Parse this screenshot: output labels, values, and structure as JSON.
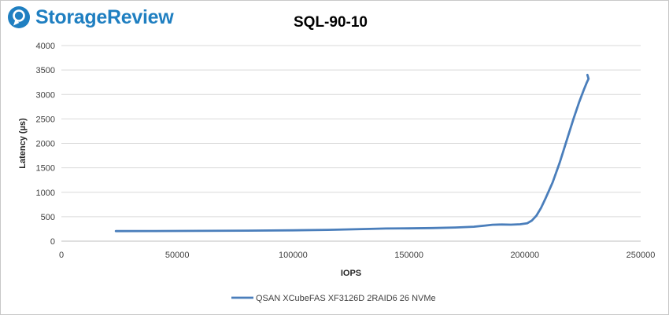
{
  "brand": {
    "name": "StorageReview",
    "color": "#1f7fc1"
  },
  "chart_data": {
    "type": "line",
    "title": "SQL-90-10",
    "xlabel": "IOPS",
    "ylabel": "Latency (µs)",
    "xlim": [
      0,
      250000
    ],
    "ylim": [
      0,
      4000
    ],
    "xticks": [
      0,
      50000,
      100000,
      150000,
      200000,
      250000
    ],
    "yticks": [
      0,
      500,
      1000,
      1500,
      2000,
      2500,
      3000,
      3500,
      4000
    ],
    "grid": true,
    "legend_position": "bottom",
    "series": [
      {
        "name": "QSAN XCubeFAS XF3126D 2RAID6 26 NVMe",
        "color": "#4a7ebb",
        "points": [
          [
            23500,
            205
          ],
          [
            40000,
            207
          ],
          [
            60000,
            210
          ],
          [
            80000,
            215
          ],
          [
            100000,
            222
          ],
          [
            115000,
            232
          ],
          [
            130000,
            248
          ],
          [
            140000,
            258
          ],
          [
            150000,
            262
          ],
          [
            160000,
            268
          ],
          [
            170000,
            280
          ],
          [
            178000,
            295
          ],
          [
            183000,
            320
          ],
          [
            186000,
            335
          ],
          [
            190000,
            340
          ],
          [
            194000,
            338
          ],
          [
            198000,
            345
          ],
          [
            201000,
            365
          ],
          [
            203000,
            420
          ],
          [
            205000,
            520
          ],
          [
            207000,
            680
          ],
          [
            209000,
            880
          ],
          [
            212000,
            1200
          ],
          [
            215000,
            1600
          ],
          [
            218000,
            2050
          ],
          [
            221000,
            2500
          ],
          [
            223500,
            2850
          ],
          [
            225500,
            3100
          ],
          [
            226800,
            3250
          ],
          [
            227500,
            3320
          ],
          [
            227000,
            3400
          ]
        ]
      }
    ]
  }
}
